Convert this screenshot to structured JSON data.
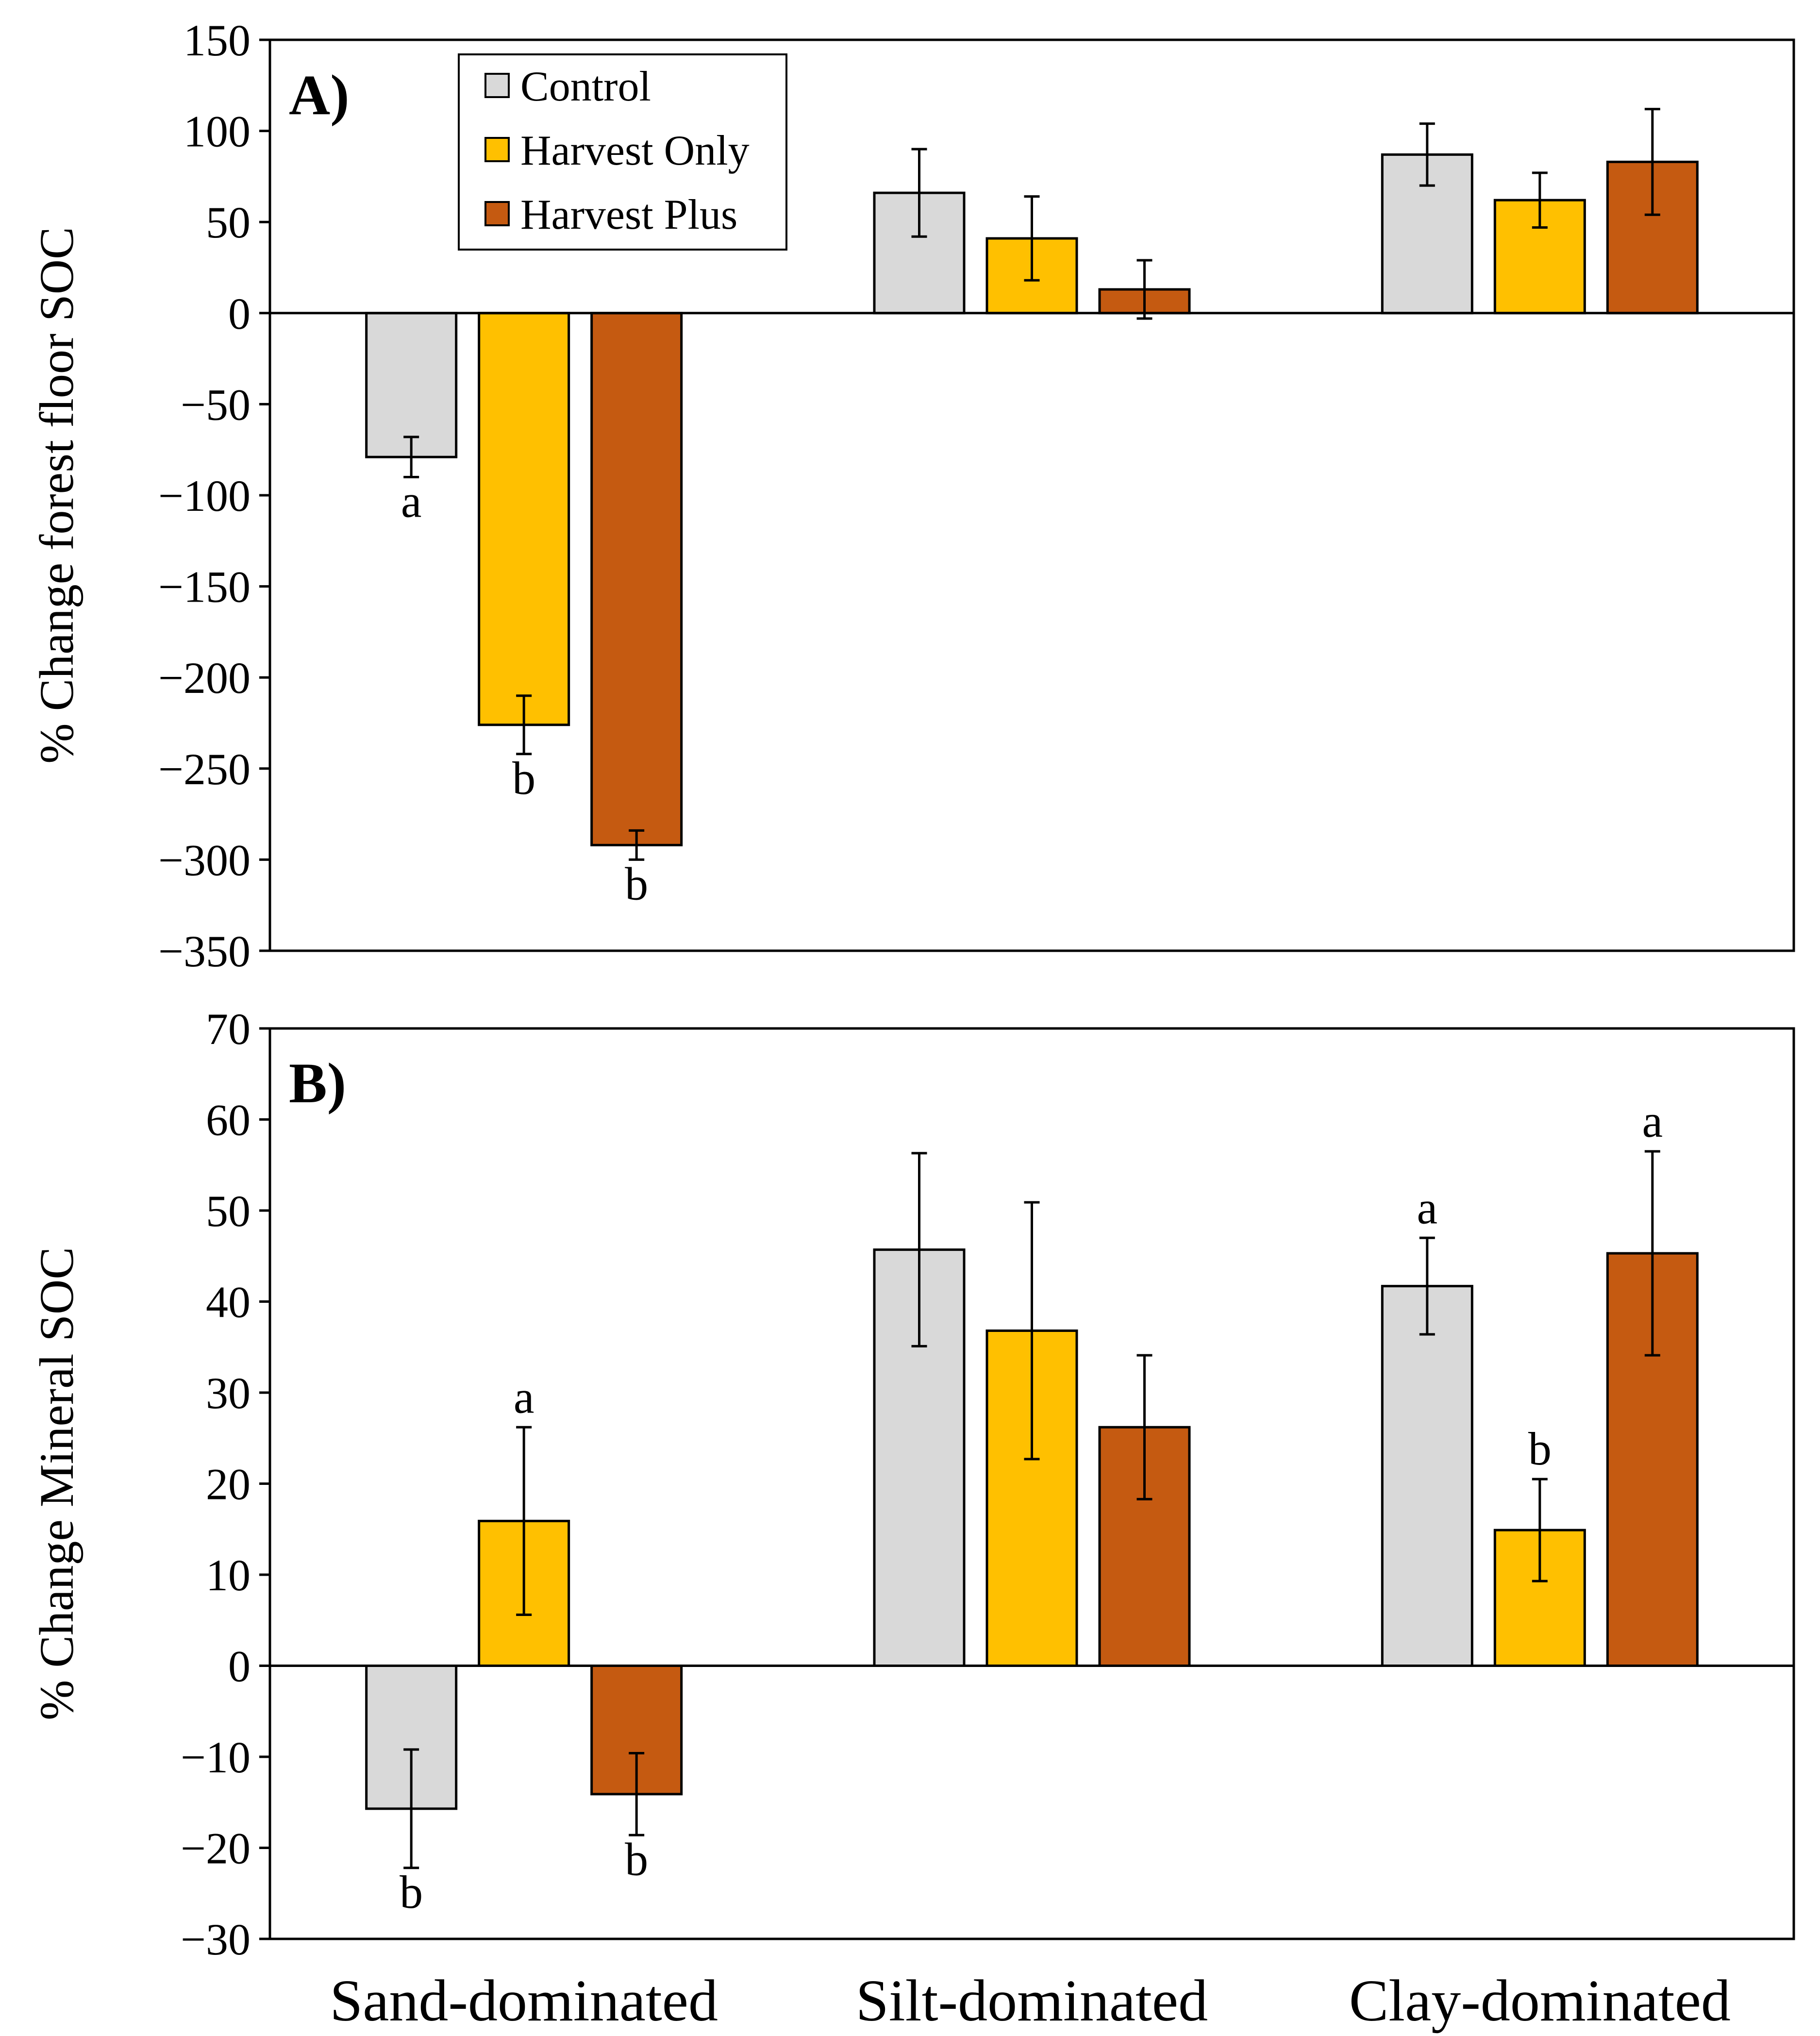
{
  "legend": {
    "entries": [
      "Control",
      "Harvest Only",
      "Harvest Plus"
    ]
  },
  "colors": {
    "Control": "#d9d9d9",
    "Harvest Only": "#ffc000",
    "Harvest Plus": "#c55a11",
    "stroke": "#000000"
  },
  "chart_data": [
    {
      "type": "bar",
      "panel_label": "A)",
      "ylabel": "% Change forest floor SOC",
      "ylim": [
        -350,
        150
      ],
      "yticks": [
        150,
        100,
        50,
        0,
        -50,
        -100,
        -150,
        -200,
        -250,
        -300,
        -350
      ],
      "ytick_labels": [
        "150",
        "100",
        "50",
        "0",
        "−50",
        "−100",
        "−150",
        "−200",
        "−250",
        "−300",
        "−350"
      ],
      "categories": [
        "Sand-dominated",
        "Silt-dominated",
        "Clay-dominated"
      ],
      "series": [
        {
          "name": "Control",
          "values": [
            -79,
            66,
            87
          ],
          "errors": [
            11,
            24,
            17
          ],
          "sig": [
            "a",
            "",
            ""
          ]
        },
        {
          "name": "Harvest Only",
          "values": [
            -226,
            41,
            62
          ],
          "errors": [
            16,
            23,
            15
          ],
          "sig": [
            "b",
            "",
            ""
          ]
        },
        {
          "name": "Harvest Plus",
          "values": [
            -292,
            13,
            83
          ],
          "errors": [
            8,
            16,
            29
          ],
          "sig": [
            "b",
            "",
            ""
          ]
        }
      ],
      "legend_position": "top-left",
      "grid": false
    },
    {
      "type": "bar",
      "panel_label": "B)",
      "ylabel": "% Change Mineral SOC",
      "ylim": [
        -30,
        70
      ],
      "yticks": [
        70,
        60,
        50,
        40,
        30,
        20,
        10,
        0,
        -10,
        -20,
        -30
      ],
      "ytick_labels": [
        "70",
        "60",
        "50",
        "40",
        "30",
        "20",
        "10",
        "0",
        "−10",
        "−20",
        "−30"
      ],
      "categories": [
        "Sand-dominated",
        "Silt-dominated",
        "Clay-dominated"
      ],
      "category_labels": [
        "Sand-dominated",
        "Silt-dominated",
        "Clay-dominated"
      ],
      "series": [
        {
          "name": "Control",
          "values": [
            -15.7,
            45.7,
            41.7
          ],
          "errors": [
            6.5,
            10.6,
            5.3
          ],
          "sig": [
            "b",
            "",
            "a"
          ]
        },
        {
          "name": "Harvest Only",
          "values": [
            15.9,
            36.8,
            14.9
          ],
          "errors": [
            10.3,
            14.1,
            5.6
          ],
          "sig": [
            "a",
            "",
            "b"
          ]
        },
        {
          "name": "Harvest Plus",
          "values": [
            -14.1,
            26.2,
            45.3
          ],
          "errors": [
            4.5,
            7.9,
            11.2
          ],
          "sig": [
            "b",
            "",
            "a"
          ]
        }
      ],
      "grid": false
    }
  ]
}
